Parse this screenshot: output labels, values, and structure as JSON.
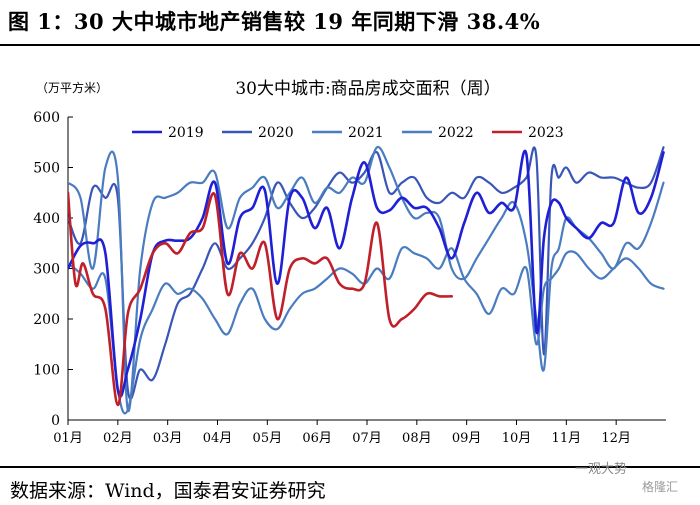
{
  "figure": {
    "title": "图 1：30 大中城市地产销售较 19 年同期下滑 38.4%",
    "source": "数据来源：Wind，国泰君安证券研究",
    "watermark": "一观大势",
    "watermark_logo": "格隆汇"
  },
  "chart_data": {
    "type": "line",
    "title": "30大中城市:商品房成交面积（周）",
    "unit_label": "（万平方米）",
    "xlabel": "",
    "ylabel": "",
    "x_tick_labels": [
      "01月",
      "02月",
      "03月",
      "04月",
      "05月",
      "06月",
      "07月",
      "08月",
      "09月",
      "10月",
      "11月",
      "12月"
    ],
    "x_range": [
      0,
      12
    ],
    "ylim": [
      0,
      600
    ],
    "y_ticks": [
      0,
      100,
      200,
      300,
      400,
      500,
      600
    ],
    "grid": false,
    "legend_position": "top",
    "series": [
      {
        "name": "2019",
        "color": "#1f1fd6",
        "width": 2.6,
        "x": [
          0,
          0.25,
          0.5,
          0.75,
          1.0,
          1.2,
          1.45,
          1.7,
          1.95,
          2.2,
          2.45,
          2.7,
          2.95,
          3.2,
          3.45,
          3.7,
          3.95,
          4.2,
          4.45,
          4.7,
          4.95,
          5.2,
          5.45,
          5.7,
          5.95,
          6.2,
          6.45,
          6.7,
          6.95,
          7.2,
          7.45,
          7.7,
          7.95,
          8.2,
          8.45,
          8.7,
          8.95,
          9.2,
          9.4,
          9.55,
          9.7,
          9.85,
          10.0,
          10.2,
          10.45,
          10.7,
          10.95,
          11.2,
          11.45,
          11.7,
          11.95
        ],
        "y": [
          300,
          345,
          350,
          330,
          60,
          100,
          200,
          330,
          355,
          355,
          360,
          400,
          470,
          310,
          400,
          420,
          455,
          270,
          440,
          440,
          380,
          420,
          340,
          440,
          510,
          420,
          415,
          440,
          420,
          420,
          380,
          320,
          390,
          450,
          410,
          430,
          420,
          525,
          175,
          360,
          430,
          430,
          400,
          380,
          360,
          390,
          390,
          480,
          410,
          440,
          530
        ]
      },
      {
        "name": "2020",
        "color": "#3a55b8",
        "width": 2.2,
        "x": [
          0,
          0.25,
          0.5,
          0.75,
          1.0,
          1.2,
          1.45,
          1.7,
          1.95,
          2.2,
          2.45,
          2.7,
          2.95,
          3.2,
          3.45,
          3.7,
          3.95,
          4.2,
          4.45,
          4.7,
          4.95,
          5.2,
          5.45,
          5.7,
          5.95,
          6.2,
          6.45,
          6.7,
          6.95,
          7.2,
          7.45,
          7.7,
          7.95,
          8.2,
          8.45,
          8.7,
          8.95,
          9.2,
          9.4,
          9.55,
          9.7,
          9.85,
          10.0,
          10.2,
          10.45,
          10.7,
          10.95,
          11.2,
          11.45,
          11.7,
          11.95
        ],
        "y": [
          400,
          350,
          460,
          440,
          440,
          60,
          100,
          80,
          150,
          230,
          250,
          300,
          350,
          300,
          320,
          350,
          400,
          470,
          430,
          400,
          420,
          460,
          490,
          470,
          490,
          530,
          450,
          470,
          480,
          440,
          430,
          450,
          440,
          480,
          470,
          450,
          460,
          480,
          520,
          130,
          480,
          480,
          500,
          470,
          490,
          480,
          480,
          470,
          460,
          470,
          540
        ]
      },
      {
        "name": "2021",
        "color": "#4a7cc0",
        "width": 2.2,
        "x": [
          0,
          0.25,
          0.5,
          0.75,
          1.0,
          1.2,
          1.45,
          1.7,
          1.95,
          2.2,
          2.45,
          2.7,
          2.95,
          3.2,
          3.45,
          3.7,
          3.95,
          4.2,
          4.45,
          4.7,
          4.95,
          5.2,
          5.45,
          5.7,
          5.95,
          6.2,
          6.45,
          6.7,
          6.95,
          7.2,
          7.45,
          7.7,
          7.95,
          8.2,
          8.45,
          8.7,
          8.95,
          9.2,
          9.4,
          9.55,
          9.7,
          9.85,
          10.0,
          10.2,
          10.45,
          10.7,
          10.95,
          11.2,
          11.45,
          11.7,
          11.95
        ],
        "y": [
          470,
          440,
          300,
          500,
          480,
          20,
          300,
          430,
          440,
          450,
          470,
          470,
          490,
          380,
          440,
          460,
          480,
          420,
          450,
          480,
          430,
          460,
          450,
          480,
          470,
          540,
          500,
          440,
          400,
          410,
          400,
          300,
          280,
          320,
          360,
          400,
          430,
          350,
          200,
          100,
          300,
          340,
          400,
          380,
          360,
          330,
          300,
          350,
          340,
          390,
          470
        ]
      },
      {
        "name": "2022",
        "color": "#4a7cc0",
        "width": 2.2,
        "x": [
          0,
          0.25,
          0.5,
          0.75,
          1.0,
          1.2,
          1.45,
          1.7,
          1.95,
          2.2,
          2.45,
          2.7,
          2.95,
          3.2,
          3.45,
          3.7,
          3.95,
          4.2,
          4.45,
          4.7,
          4.95,
          5.2,
          5.45,
          5.7,
          5.95,
          6.2,
          6.45,
          6.7,
          6.95,
          7.2,
          7.45,
          7.7,
          7.95,
          8.2,
          8.45,
          8.7,
          8.95,
          9.2,
          9.4,
          9.55,
          9.7,
          9.85,
          10.0,
          10.2,
          10.45,
          10.7,
          10.95,
          11.2,
          11.45,
          11.7,
          11.95
        ],
        "y": [
          310,
          290,
          260,
          280,
          60,
          20,
          160,
          220,
          270,
          250,
          260,
          240,
          200,
          170,
          230,
          260,
          200,
          180,
          220,
          250,
          260,
          280,
          300,
          290,
          270,
          300,
          280,
          340,
          330,
          320,
          300,
          340,
          280,
          250,
          210,
          260,
          250,
          300,
          150,
          260,
          280,
          300,
          330,
          330,
          300,
          280,
          300,
          320,
          300,
          270,
          260
        ]
      },
      {
        "name": "2023",
        "color": "#c0202a",
        "width": 2.6,
        "x": [
          0,
          0.15,
          0.3,
          0.5,
          0.75,
          1.0,
          1.2,
          1.45,
          1.7,
          1.95,
          2.2,
          2.45,
          2.7,
          2.95,
          3.2,
          3.45,
          3.7,
          3.95,
          4.2,
          4.45,
          4.7,
          4.95,
          5.2,
          5.45,
          5.7,
          5.95,
          6.2,
          6.45,
          6.7,
          6.95,
          7.2,
          7.45,
          7.7
        ],
        "y": [
          450,
          270,
          310,
          250,
          220,
          30,
          210,
          260,
          330,
          350,
          330,
          370,
          380,
          445,
          250,
          330,
          300,
          350,
          200,
          300,
          320,
          310,
          320,
          270,
          260,
          270,
          390,
          200,
          200,
          220,
          250,
          245,
          245
        ]
      }
    ]
  }
}
